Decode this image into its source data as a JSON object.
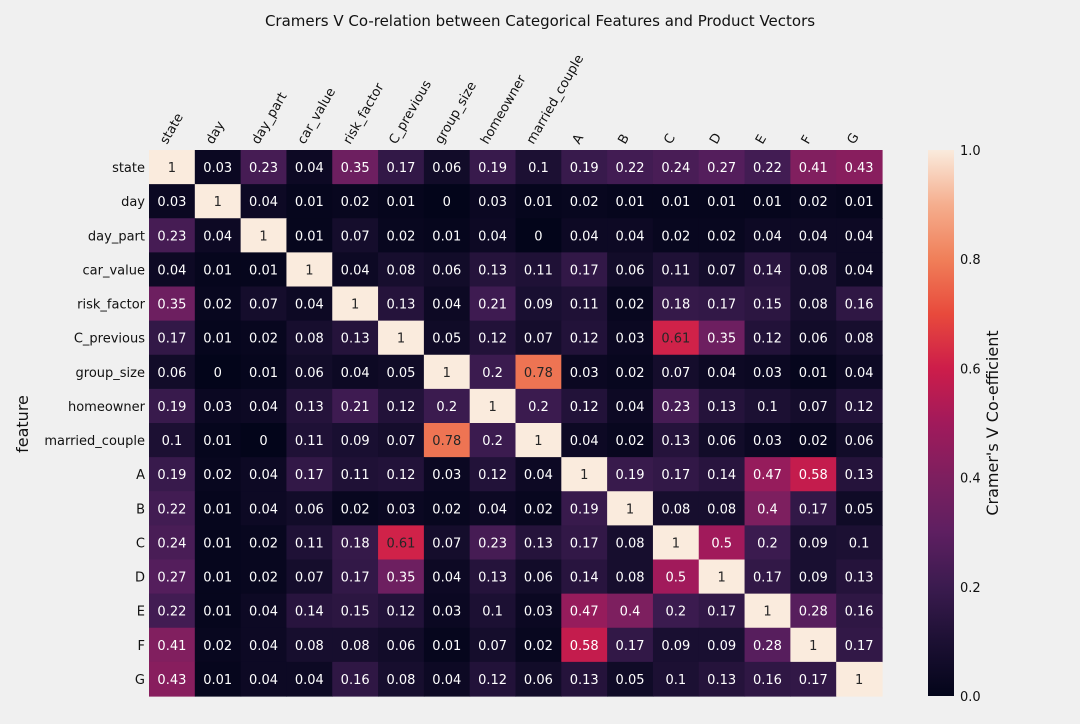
{
  "chart_data": {
    "type": "heatmap",
    "title": "Cramers V Co-relation between Categorical Features and Product Vectors",
    "xlabel": "",
    "ylabel": "feature",
    "x_categories": [
      "state",
      "day",
      "day_part",
      "car_value",
      "risk_factor",
      "C_previous",
      "group_size",
      "homeowner",
      "married_couple",
      "A",
      "B",
      "C",
      "D",
      "E",
      "F",
      "G"
    ],
    "y_categories": [
      "state",
      "day",
      "day_part",
      "car_value",
      "risk_factor",
      "C_previous",
      "group_size",
      "homeowner",
      "married_couple",
      "A",
      "B",
      "C",
      "D",
      "E",
      "F",
      "G"
    ],
    "values": [
      [
        1,
        0.03,
        0.23,
        0.04,
        0.35,
        0.17,
        0.06,
        0.19,
        0.1,
        0.19,
        0.22,
        0.24,
        0.27,
        0.22,
        0.41,
        0.43
      ],
      [
        0.03,
        1,
        0.04,
        0.01,
        0.02,
        0.01,
        0,
        0.03,
        0.01,
        0.02,
        0.01,
        0.01,
        0.01,
        0.01,
        0.02,
        0.01
      ],
      [
        0.23,
        0.04,
        1,
        0.01,
        0.07,
        0.02,
        0.01,
        0.04,
        0,
        0.04,
        0.04,
        0.02,
        0.02,
        0.04,
        0.04,
        0.04
      ],
      [
        0.04,
        0.01,
        0.01,
        1,
        0.04,
        0.08,
        0.06,
        0.13,
        0.11,
        0.17,
        0.06,
        0.11,
        0.07,
        0.14,
        0.08,
        0.04
      ],
      [
        0.35,
        0.02,
        0.07,
        0.04,
        1,
        0.13,
        0.04,
        0.21,
        0.09,
        0.11,
        0.02,
        0.18,
        0.17,
        0.15,
        0.08,
        0.16
      ],
      [
        0.17,
        0.01,
        0.02,
        0.08,
        0.13,
        1,
        0.05,
        0.12,
        0.07,
        0.12,
        0.03,
        0.61,
        0.35,
        0.12,
        0.06,
        0.08
      ],
      [
        0.06,
        0,
        0.01,
        0.06,
        0.04,
        0.05,
        1,
        0.2,
        0.78,
        0.03,
        0.02,
        0.07,
        0.04,
        0.03,
        0.01,
        0.04
      ],
      [
        0.19,
        0.03,
        0.04,
        0.13,
        0.21,
        0.12,
        0.2,
        1,
        0.2,
        0.12,
        0.04,
        0.23,
        0.13,
        0.1,
        0.07,
        0.12
      ],
      [
        0.1,
        0.01,
        0,
        0.11,
        0.09,
        0.07,
        0.78,
        0.2,
        1,
        0.04,
        0.02,
        0.13,
        0.06,
        0.03,
        0.02,
        0.06
      ],
      [
        0.19,
        0.02,
        0.04,
        0.17,
        0.11,
        0.12,
        0.03,
        0.12,
        0.04,
        1,
        0.19,
        0.17,
        0.14,
        0.47,
        0.58,
        0.13
      ],
      [
        0.22,
        0.01,
        0.04,
        0.06,
        0.02,
        0.03,
        0.02,
        0.04,
        0.02,
        0.19,
        1,
        0.08,
        0.08,
        0.4,
        0.17,
        0.05
      ],
      [
        0.24,
        0.01,
        0.02,
        0.11,
        0.18,
        0.61,
        0.07,
        0.23,
        0.13,
        0.17,
        0.08,
        1,
        0.5,
        0.2,
        0.09,
        0.1
      ],
      [
        0.27,
        0.01,
        0.02,
        0.07,
        0.17,
        0.35,
        0.04,
        0.13,
        0.06,
        0.14,
        0.08,
        0.5,
        1,
        0.17,
        0.09,
        0.13
      ],
      [
        0.22,
        0.01,
        0.04,
        0.14,
        0.15,
        0.12,
        0.03,
        0.1,
        0.03,
        0.47,
        0.4,
        0.2,
        0.17,
        1,
        0.28,
        0.16
      ],
      [
        0.41,
        0.02,
        0.04,
        0.08,
        0.08,
        0.06,
        0.01,
        0.07,
        0.02,
        0.58,
        0.17,
        0.09,
        0.09,
        0.28,
        1,
        0.17
      ],
      [
        0.43,
        0.01,
        0.04,
        0.04,
        0.16,
        0.08,
        0.04,
        0.12,
        0.06,
        0.13,
        0.05,
        0.1,
        0.13,
        0.16,
        0.17,
        1
      ]
    ],
    "colorbar": {
      "label": "Cramer's V Co-efficient",
      "range": [
        0,
        1
      ],
      "ticks": [
        "0.0",
        "0.2",
        "0.4",
        "0.6",
        "0.8",
        "1.0"
      ],
      "colormap": "rocket"
    }
  }
}
